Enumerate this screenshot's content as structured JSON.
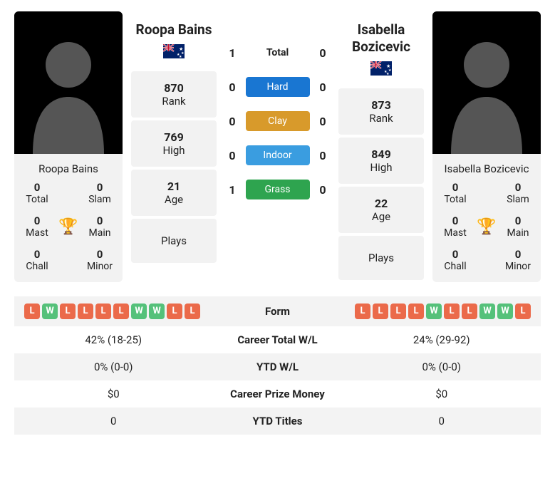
{
  "colors": {
    "card_bg": "#f2f2f2",
    "hard": "#1976d2",
    "clay": "#d89a2b",
    "indoor": "#3a9de0",
    "grass": "#2ea44f",
    "win": "#55c17a",
    "loss": "#eb6a4a",
    "trophy": "#2e6fb5"
  },
  "p1": {
    "name": "Roopa Bains",
    "country": "AU",
    "rank": "870",
    "high": "769",
    "age": "21",
    "plays": "",
    "titles": {
      "total": "0",
      "slam": "0",
      "mast": "0",
      "main": "0",
      "chall": "0",
      "minor": "0"
    },
    "form": [
      "L",
      "W",
      "L",
      "L",
      "L",
      "L",
      "W",
      "W",
      "L",
      "L"
    ],
    "career_wl": "42% (18-25)",
    "ytd_wl": "0% (0-0)",
    "prize": "$0",
    "ytd_titles": "0"
  },
  "p2": {
    "name": "Isabella Bozicevic",
    "country": "AU",
    "rank": "873",
    "high": "849",
    "age": "22",
    "plays": "",
    "titles": {
      "total": "0",
      "slam": "0",
      "mast": "0",
      "main": "0",
      "chall": "0",
      "minor": "0"
    },
    "form": [
      "L",
      "L",
      "L",
      "L",
      "W",
      "L",
      "L",
      "W",
      "W",
      "L"
    ],
    "career_wl": "24% (29-92)",
    "ytd_wl": "0% (0-0)",
    "prize": "$0",
    "ytd_titles": "0"
  },
  "h2h": {
    "total_label": "Total",
    "rows": [
      {
        "label": "Hard",
        "color_key": "hard",
        "p1": "0",
        "p2": "0"
      },
      {
        "label": "Clay",
        "color_key": "clay",
        "p1": "0",
        "p2": "0"
      },
      {
        "label": "Indoor",
        "color_key": "indoor",
        "p1": "0",
        "p2": "0"
      },
      {
        "label": "Grass",
        "color_key": "grass",
        "p1": "1",
        "p2": "0"
      }
    ],
    "total": {
      "p1": "1",
      "p2": "0"
    }
  },
  "labels": {
    "rank": "Rank",
    "high": "High",
    "age": "Age",
    "plays": "Plays",
    "total": "Total",
    "slam": "Slam",
    "mast": "Mast",
    "main": "Main",
    "chall": "Chall",
    "minor": "Minor",
    "form": "Form",
    "career_wl": "Career Total W/L",
    "ytd_wl": "YTD W/L",
    "prize": "Career Prize Money",
    "ytd_titles": "YTD Titles"
  }
}
